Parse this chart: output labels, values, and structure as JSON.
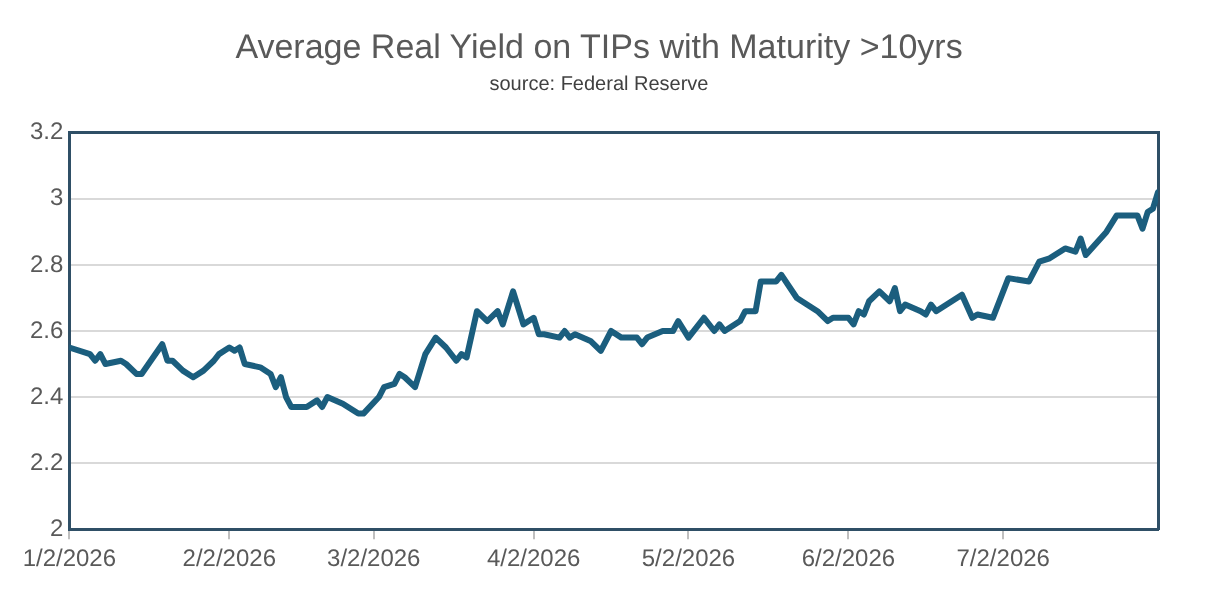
{
  "chart_data": {
    "type": "line",
    "title": "Average Real Yield on TIPs with Maturity >10yrs",
    "subtitle": "source: Federal Reserve",
    "x": [
      "2026-01-02",
      "2026-01-06",
      "2026-01-07",
      "2026-01-08",
      "2026-01-09",
      "2026-01-12",
      "2026-01-13",
      "2026-01-15",
      "2026-01-16",
      "2026-01-20",
      "2026-01-21",
      "2026-01-22",
      "2026-01-24",
      "2026-01-26",
      "2026-01-28",
      "2026-01-30",
      "2026-01-31",
      "2026-02-02",
      "2026-02-03",
      "2026-02-04",
      "2026-02-05",
      "2026-02-08",
      "2026-02-10",
      "2026-02-11",
      "2026-02-12",
      "2026-02-13",
      "2026-02-14",
      "2026-02-17",
      "2026-02-19",
      "2026-02-20",
      "2026-02-21",
      "2026-02-24",
      "2026-02-25",
      "2026-02-27",
      "2026-02-28",
      "2026-03-03",
      "2026-03-04",
      "2026-03-06",
      "2026-03-07",
      "2026-03-08",
      "2026-03-10",
      "2026-03-12",
      "2026-03-14",
      "2026-03-16",
      "2026-03-18",
      "2026-03-19",
      "2026-03-20",
      "2026-03-22",
      "2026-03-24",
      "2026-03-26",
      "2026-03-27",
      "2026-03-29",
      "2026-03-31",
      "2026-04-02",
      "2026-04-03",
      "2026-04-04",
      "2026-04-07",
      "2026-04-08",
      "2026-04-09",
      "2026-04-10",
      "2026-04-13",
      "2026-04-15",
      "2026-04-17",
      "2026-04-19",
      "2026-04-22",
      "2026-04-23",
      "2026-04-24",
      "2026-04-27",
      "2026-04-29",
      "2026-04-30",
      "2026-05-02",
      "2026-05-05",
      "2026-05-07",
      "2026-05-08",
      "2026-05-09",
      "2026-05-12",
      "2026-05-13",
      "2026-05-15",
      "2026-05-16",
      "2026-05-19",
      "2026-05-20",
      "2026-05-23",
      "2026-05-27",
      "2026-05-29",
      "2026-05-30",
      "2026-06-02",
      "2026-06-03",
      "2026-06-04",
      "2026-06-05",
      "2026-06-06",
      "2026-06-08",
      "2026-06-10",
      "2026-06-11",
      "2026-06-12",
      "2026-06-13",
      "2026-06-16",
      "2026-06-17",
      "2026-06-18",
      "2026-06-19",
      "2026-06-24",
      "2026-06-26",
      "2026-06-27",
      "2026-06-30",
      "2026-07-03",
      "2026-07-07",
      "2026-07-09",
      "2026-07-11",
      "2026-07-14",
      "2026-07-16",
      "2026-07-17",
      "2026-07-18",
      "2026-07-22",
      "2026-07-24",
      "2026-07-28",
      "2026-07-29",
      "2026-07-30",
      "2026-07-31",
      "2026-08-01"
    ],
    "series": [
      {
        "color": "#1b5e7e",
        "values": [
          2.55,
          2.53,
          2.51,
          2.53,
          2.5,
          2.51,
          2.5,
          2.47,
          2.47,
          2.56,
          2.51,
          2.51,
          2.48,
          2.46,
          2.48,
          2.51,
          2.53,
          2.55,
          2.54,
          2.55,
          2.5,
          2.49,
          2.47,
          2.43,
          2.46,
          2.4,
          2.37,
          2.37,
          2.39,
          2.37,
          2.4,
          2.38,
          2.37,
          2.35,
          2.35,
          2.4,
          2.43,
          2.44,
          2.47,
          2.46,
          2.43,
          2.53,
          2.58,
          2.55,
          2.51,
          2.53,
          2.52,
          2.66,
          2.63,
          2.66,
          2.62,
          2.72,
          2.62,
          2.64,
          2.59,
          2.59,
          2.58,
          2.6,
          2.58,
          2.59,
          2.57,
          2.54,
          2.6,
          2.58,
          2.58,
          2.56,
          2.58,
          2.6,
          2.6,
          2.63,
          2.58,
          2.64,
          2.6,
          2.62,
          2.6,
          2.63,
          2.66,
          2.66,
          2.75,
          2.75,
          2.77,
          2.7,
          2.66,
          2.63,
          2.64,
          2.64,
          2.62,
          2.66,
          2.65,
          2.69,
          2.72,
          2.69,
          2.73,
          2.66,
          2.68,
          2.66,
          2.65,
          2.68,
          2.66,
          2.71,
          2.64,
          2.65,
          2.64,
          2.76,
          2.75,
          2.81,
          2.82,
          2.85,
          2.84,
          2.88,
          2.83,
          2.9,
          2.95,
          2.95,
          2.91,
          2.96,
          2.97,
          3.02
        ]
      }
    ],
    "xlim": [
      "2026-01-02",
      "2026-08-01"
    ],
    "xticks": [
      {
        "value": "2026-01-02",
        "label": "1/2/2026"
      },
      {
        "value": "2026-02-02",
        "label": "2/2/2026"
      },
      {
        "value": "2026-03-02",
        "label": "3/2/2026"
      },
      {
        "value": "2026-04-02",
        "label": "4/2/2026"
      },
      {
        "value": "2026-05-02",
        "label": "5/2/2026"
      },
      {
        "value": "2026-06-02",
        "label": "6/2/2026"
      },
      {
        "value": "2026-07-02",
        "label": "7/2/2026"
      }
    ],
    "ylim": [
      2,
      3.2
    ],
    "yticks": [
      2,
      2.2,
      2.4,
      2.6,
      2.8,
      3,
      3.2
    ],
    "grid": "y",
    "legend": false,
    "marker": "none",
    "line_style": "solid"
  }
}
